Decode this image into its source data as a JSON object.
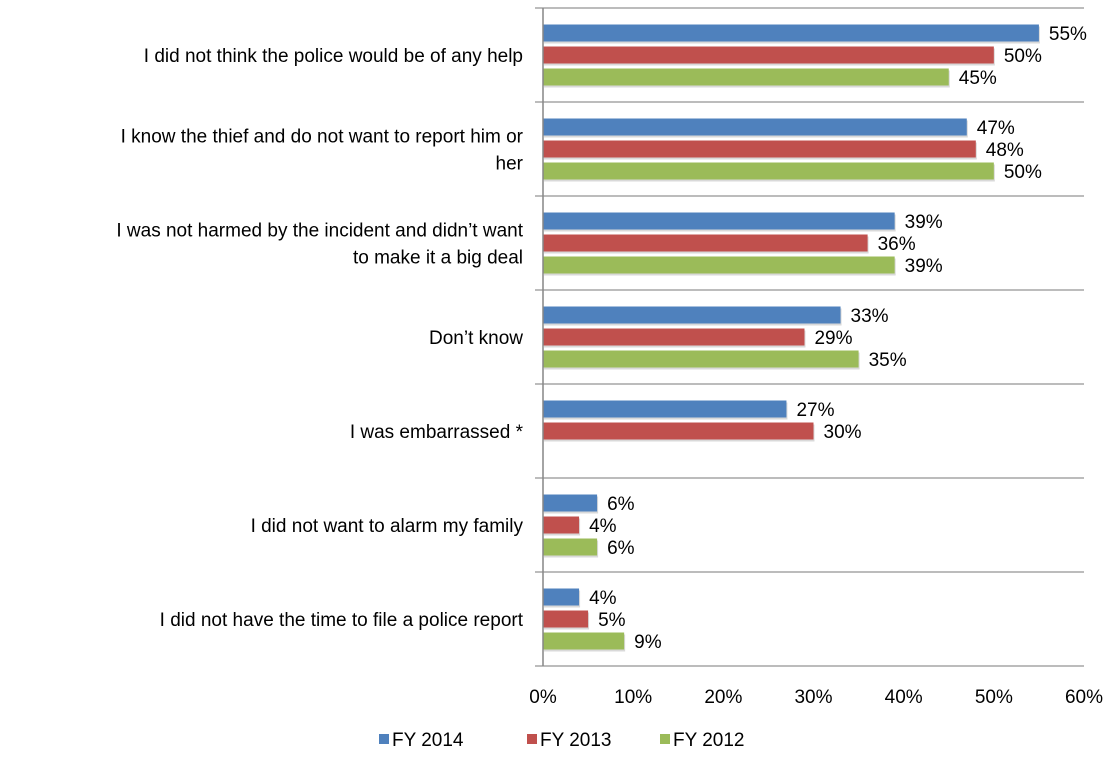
{
  "chart_data": {
    "type": "bar",
    "orientation": "horizontal",
    "categories": [
      [
        "I did not think the police would be of any help"
      ],
      [
        "I know the thief and do not want to report him or",
        "her"
      ],
      [
        "I was not harmed by the incident and didn’t want",
        "to make it a big deal"
      ],
      [
        "Don’t know"
      ],
      [
        "I was embarrassed *"
      ],
      [
        "I did not want to alarm my family"
      ],
      [
        "I did not have the time to file a police report"
      ]
    ],
    "series": [
      {
        "name": "FY 2014",
        "color": "#4F81BD",
        "values": [
          55,
          47,
          39,
          33,
          27,
          6,
          4
        ],
        "labels": [
          "55%",
          "47%",
          "39%",
          "33%",
          "27%",
          "6%",
          "4%"
        ]
      },
      {
        "name": "FY 2013",
        "color": "#C0504D",
        "values": [
          50,
          48,
          36,
          29,
          30,
          4,
          5
        ],
        "labels": [
          "50%",
          "48%",
          "36%",
          "29%",
          "30%",
          "4%",
          "5%"
        ]
      },
      {
        "name": "FY 2012",
        "color": "#9BBB59",
        "values": [
          45,
          50,
          39,
          35,
          null,
          6,
          9
        ],
        "labels": [
          "45%",
          "50%",
          "39%",
          "35%",
          null,
          "6%",
          "9%"
        ]
      }
    ],
    "xlim": [
      0,
      60
    ],
    "xticks": [
      "0%",
      "10%",
      "20%",
      "30%",
      "40%",
      "50%",
      "60%"
    ],
    "xtick_values": [
      0,
      10,
      20,
      30,
      40,
      50,
      60
    ],
    "grid": "horizontal separators between categories",
    "legend_position": "bottom"
  }
}
